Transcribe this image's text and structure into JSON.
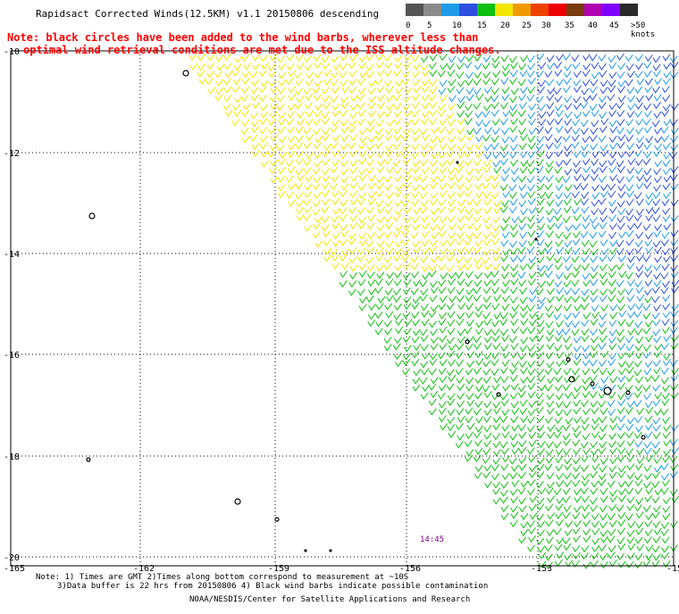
{
  "title": "Rapidsact Corrected Winds(12.5KM) v1.1 20150806 descending",
  "note": {
    "line1": "Note: black circles have been added to the wind barbs, wherever less than",
    "line2": "optimal wind retrieval conditions are met due to the ISS altitude changes."
  },
  "legend": {
    "labels": [
      "0",
      "5",
      "10",
      "15",
      "20",
      "25",
      "30",
      "35",
      "40",
      "45",
      ">50 knots"
    ],
    "colors": [
      "#555555",
      "#8a8a8a",
      "#1e9be8",
      "#2e4fe0",
      "#10c010",
      "#f2e600",
      "#f09a00",
      "#f04000",
      "#ee0000",
      "#7a3a10",
      "#b000b0",
      "#8000ff",
      "#2a2a2a"
    ]
  },
  "axes": {
    "lat_labels": [
      "-10",
      "-12",
      "-14",
      "-16",
      "-18",
      "-20"
    ],
    "lon_labels": [
      "-165",
      "-162",
      "-159",
      "-156",
      "-153",
      "-15"
    ]
  },
  "time_label": "14:45",
  "footer": {
    "line1": "Note: 1) Times are GMT 2)Times along bottom correspond to measurement at ~10S",
    "line2": "3)Data buffer is 22 hrs from 20150806 4) Black wind barbs indicate possible contamination",
    "line3": "NOAA/NESDIS/Center for Satellite Applications and Research"
  }
}
